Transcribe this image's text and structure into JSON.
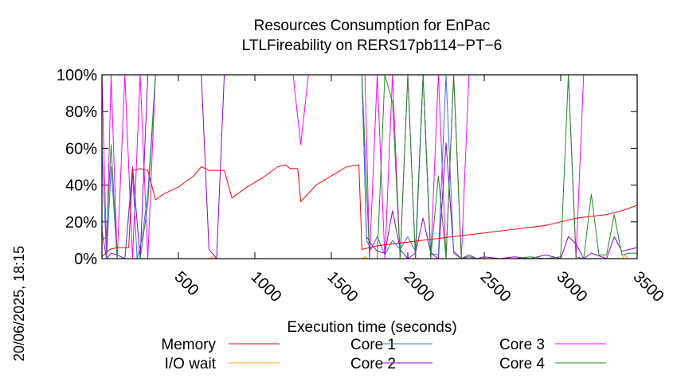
{
  "chart_data": {
    "type": "line",
    "title": [
      "Resources Consumption for EnPac",
      "LTLFireability on RERS17pb114−PT−6"
    ],
    "xlabel": "Execution time (seconds)",
    "ylabel": "",
    "side_label": "20/06/2025, 18:15",
    "xlim": [
      0,
      3500
    ],
    "ylim": [
      0,
      100
    ],
    "x_ticks": [
      500,
      1000,
      1500,
      2000,
      2500,
      3000,
      3500
    ],
    "x_tick_labels": [
      "500",
      "1000",
      "1500",
      "2000",
      "2500",
      "3000",
      "3500"
    ],
    "y_ticks": [
      0,
      20,
      40,
      60,
      80,
      100
    ],
    "y_tick_labels": [
      "0%",
      "20%",
      "40%",
      "60%",
      "80%",
      "100%"
    ],
    "legend_columns": 3,
    "series": [
      {
        "name": "Memory",
        "color": "#ff0000",
        "x": [
          0,
          50,
          100,
          150,
          175,
          200,
          250,
          300,
          350,
          400,
          500,
          600,
          650,
          700,
          800,
          850,
          950,
          1050,
          1150,
          1200,
          1230,
          1280,
          1300,
          1400,
          1500,
          1600,
          1680,
          1700,
          1800,
          1900,
          2000,
          2100,
          2200,
          2300,
          2400,
          2500,
          2600,
          2700,
          2800,
          2900,
          3000,
          3100,
          3200,
          3300,
          3400,
          3500
        ],
        "y": [
          1,
          5,
          6,
          6,
          6,
          48,
          49,
          48,
          32,
          35,
          39,
          45,
          50,
          48,
          48,
          33,
          39,
          44,
          50,
          51,
          49,
          49,
          31,
          40,
          45,
          50,
          51,
          5,
          7,
          8,
          9,
          10,
          11,
          12,
          13,
          14,
          15,
          16,
          17,
          18,
          20,
          22,
          23,
          24,
          26,
          29
        ]
      },
      {
        "name": "I/O wait",
        "color": "#ffa500",
        "x": [
          0,
          100,
          700,
          720,
          740,
          1700,
          1720,
          1740,
          3400,
          3420,
          3440,
          3500
        ],
        "y": [
          0,
          0,
          0,
          1,
          0,
          0,
          1,
          0,
          0,
          2,
          0,
          0
        ]
      },
      {
        "name": "Core 1",
        "color": "#4169e1",
        "x": [
          0,
          30,
          60,
          100,
          150,
          200,
          230,
          260,
          300,
          350,
          400,
          1700,
          1730,
          1760,
          1800,
          1850,
          1900,
          1950,
          2000,
          2050,
          2100,
          2150,
          2200,
          2250,
          2300,
          2350,
          2400,
          2450,
          2500,
          3500
        ],
        "y": [
          60,
          0,
          50,
          0,
          0,
          47,
          0,
          10,
          35,
          100,
          100,
          100,
          10,
          5,
          12,
          2,
          10,
          5,
          12,
          4,
          100,
          3,
          2,
          100,
          3,
          0,
          1,
          0,
          0,
          0
        ]
      },
      {
        "name": "Core 2",
        "color": "#9400d3",
        "x": [
          0,
          30,
          60,
          100,
          150,
          200,
          250,
          300,
          650,
          700,
          750,
          800,
          1700,
          1730,
          1760,
          1800,
          1850,
          1900,
          1950,
          2000,
          2050,
          2100,
          2150,
          2200,
          2250,
          2300,
          2350,
          2400,
          2450,
          2500,
          2600,
          2700,
          2800,
          2900,
          3000,
          3050,
          3100,
          3150,
          3200,
          3300,
          3350,
          3400,
          3450,
          3500
        ],
        "y": [
          15,
          0,
          3,
          2,
          0,
          50,
          0,
          100,
          100,
          5,
          0,
          100,
          100,
          12,
          8,
          4,
          3,
          26,
          5,
          0,
          3,
          22,
          3,
          0,
          63,
          4,
          0,
          2,
          0,
          1,
          0,
          1,
          0,
          2,
          0,
          12,
          8,
          0,
          3,
          0,
          12,
          4,
          5,
          6
        ]
      },
      {
        "name": "Core 3",
        "color": "#ff00ff",
        "x": [
          0,
          30,
          60,
          100,
          150,
          200,
          250,
          300,
          350,
          400,
          1100,
          1150,
          1250,
          1300,
          1350,
          1400,
          1700,
          1720,
          1750,
          1800,
          1850,
          1900,
          1950,
          2000,
          2050,
          2100,
          2150,
          2200,
          2250,
          2300,
          2350,
          2400,
          2450,
          2500,
          2600,
          2700,
          2800,
          2900,
          3000,
          3050,
          3100,
          3150,
          3200,
          3300,
          3400,
          3500
        ],
        "y": [
          100,
          3,
          100,
          0,
          100,
          0,
          100,
          0,
          100,
          100,
          100,
          100,
          100,
          62,
          100,
          100,
          100,
          100,
          0,
          100,
          0,
          100,
          0,
          100,
          0,
          100,
          0,
          100,
          0,
          100,
          0,
          100,
          100,
          100,
          100,
          100,
          100,
          100,
          100,
          100,
          0,
          100,
          100,
          100,
          100,
          100
        ]
      },
      {
        "name": "Core 4",
        "color": "#228b22",
        "x": [
          0,
          30,
          60,
          100,
          150,
          200,
          250,
          300,
          350,
          1300,
          1350,
          1400,
          1700,
          1750,
          1800,
          1850,
          1900,
          1950,
          2000,
          2050,
          2100,
          2150,
          2200,
          2250,
          2300,
          2350,
          2400,
          2450,
          2500,
          2600,
          2700,
          2800,
          2900,
          3000,
          3050,
          3100,
          3150,
          3200,
          3250,
          3300,
          3350,
          3400,
          3450,
          3500
        ],
        "y": [
          10,
          12,
          62,
          0,
          0,
          0,
          0,
          30,
          100,
          100,
          100,
          100,
          100,
          0,
          0,
          100,
          85,
          0,
          100,
          0,
          100,
          0,
          45,
          0,
          100,
          0,
          1,
          0,
          0,
          0,
          0,
          1,
          0,
          1,
          100,
          1,
          0,
          35,
          2,
          2,
          24,
          2,
          3,
          3
        ]
      }
    ]
  }
}
